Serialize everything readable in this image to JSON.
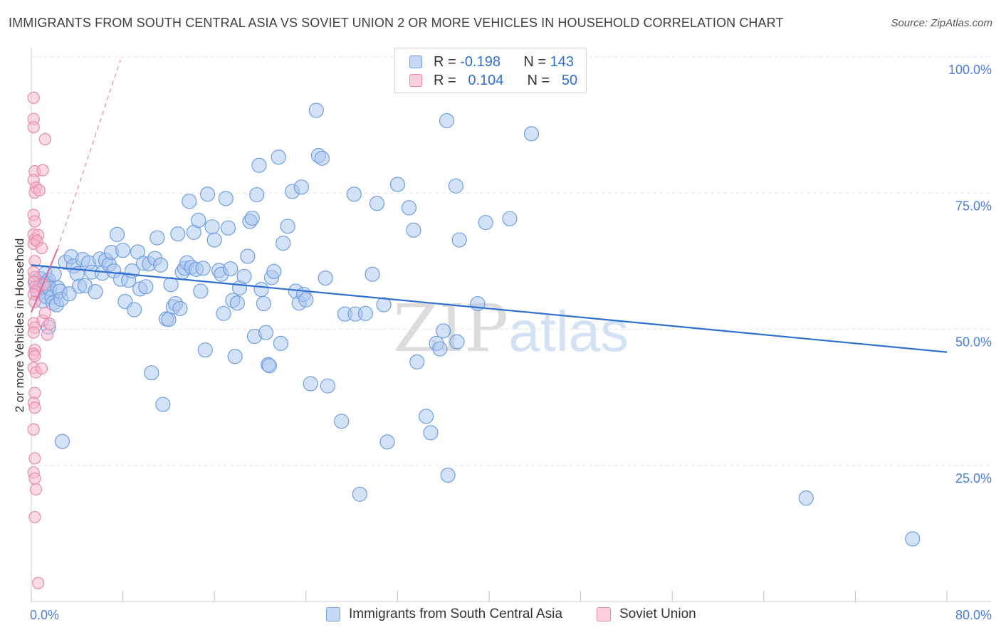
{
  "header": {
    "title": "IMMIGRANTS FROM SOUTH CENTRAL ASIA VS SOVIET UNION 2 OR MORE VEHICLES IN HOUSEHOLD CORRELATION CHART",
    "source": "Source: ZipAtlas.com"
  },
  "legend": {
    "blue": {
      "r_label": "R =",
      "r_value": "-0.198",
      "n_label": "N =",
      "n_value": "143"
    },
    "pink": {
      "r_label": "R =",
      "r_value": "0.104",
      "n_label": "N =",
      "n_value": "50"
    }
  },
  "bottom_legend": {
    "blue_label": "Immigrants from South Central Asia",
    "pink_label": "Soviet Union"
  },
  "watermark": {
    "zip": "ZIP",
    "atlas": "atlas"
  },
  "colors": {
    "blue_fill": "#a9c6ef",
    "blue_stroke": "#6f9ee0",
    "blue_line": "#2f6fd0",
    "pink_fill": "#f6b6cb",
    "pink_stroke": "#e78aab",
    "pink_line": "#e0689a",
    "grid": "#e4e4e4",
    "tick_label": "#4a7fd6"
  },
  "chart_data": {
    "type": "scatter",
    "title": "IMMIGRANTS FROM SOUTH CENTRAL ASIA VS SOVIET UNION 2 OR MORE VEHICLES IN HOUSEHOLD CORRELATION CHART",
    "xlabel": "",
    "ylabel": "2 or more Vehicles in Household",
    "xlim": [
      0,
      80
    ],
    "ylim": [
      0,
      100
    ],
    "x_tick_labels": [
      "0.0%",
      "80.0%"
    ],
    "y_ticks": [
      25,
      50,
      75,
      100
    ],
    "y_tick_labels": [
      "25.0%",
      "50.0%",
      "75.0%",
      "100.0%"
    ],
    "grid": true,
    "legend_position": "top-center",
    "series": [
      {
        "name": "Immigrants from South Central Asia",
        "color": "#a9c6ef",
        "points": [
          [
            0.4,
            58.8
          ],
          [
            0.5,
            57.2
          ],
          [
            0.6,
            56.5
          ],
          [
            0.8,
            59.3
          ],
          [
            0.9,
            58.1
          ],
          [
            1.0,
            55.2
          ],
          [
            1.1,
            57.8
          ],
          [
            1.2,
            60.2
          ],
          [
            1.3,
            56.0
          ],
          [
            1.4,
            58.5
          ],
          [
            1.5,
            59.0
          ],
          [
            1.5,
            50.4
          ],
          [
            1.6,
            57.5
          ],
          [
            1.8,
            55.9
          ],
          [
            1.9,
            54.8
          ],
          [
            2.0,
            60.1
          ],
          [
            2.2,
            54.5
          ],
          [
            2.3,
            57.6
          ],
          [
            2.5,
            57.0
          ],
          [
            2.6,
            55.5
          ],
          [
            2.7,
            29.4
          ],
          [
            3.0,
            62.3
          ],
          [
            3.3,
            56.5
          ],
          [
            3.5,
            63.3
          ],
          [
            3.7,
            61.6
          ],
          [
            4.0,
            60.2
          ],
          [
            4.2,
            57.9
          ],
          [
            4.5,
            62.8
          ],
          [
            4.7,
            58.0
          ],
          [
            5.0,
            62.2
          ],
          [
            5.3,
            60.5
          ],
          [
            5.6,
            56.9
          ],
          [
            6.0,
            62.9
          ],
          [
            6.2,
            60.3
          ],
          [
            6.5,
            62.7
          ],
          [
            6.8,
            61.9
          ],
          [
            7.0,
            64.1
          ],
          [
            7.2,
            60.7
          ],
          [
            7.5,
            67.4
          ],
          [
            7.8,
            59.2
          ],
          [
            8.0,
            64.5
          ],
          [
            8.2,
            55.1
          ],
          [
            8.5,
            59.0
          ],
          [
            8.8,
            60.7
          ],
          [
            9.0,
            53.6
          ],
          [
            9.3,
            64.2
          ],
          [
            9.5,
            57.4
          ],
          [
            9.8,
            62.1
          ],
          [
            10.0,
            57.8
          ],
          [
            10.3,
            62.0
          ],
          [
            10.5,
            42.0
          ],
          [
            10.8,
            63.0
          ],
          [
            11.0,
            66.8
          ],
          [
            11.3,
            61.8
          ],
          [
            11.5,
            36.2
          ],
          [
            11.8,
            51.9
          ],
          [
            12.0,
            51.8
          ],
          [
            12.2,
            58.2
          ],
          [
            12.4,
            54.1
          ],
          [
            12.6,
            54.7
          ],
          [
            12.8,
            67.5
          ],
          [
            13.0,
            53.8
          ],
          [
            13.2,
            60.5
          ],
          [
            13.4,
            61.2
          ],
          [
            13.6,
            62.2
          ],
          [
            13.8,
            73.5
          ],
          [
            14.0,
            61.4
          ],
          [
            14.2,
            67.8
          ],
          [
            14.4,
            61.0
          ],
          [
            14.6,
            70.0
          ],
          [
            14.8,
            57.0
          ],
          [
            15.0,
            61.2
          ],
          [
            15.2,
            46.2
          ],
          [
            15.4,
            74.8
          ],
          [
            15.8,
            68.8
          ],
          [
            16.0,
            66.4
          ],
          [
            16.4,
            60.8
          ],
          [
            16.6,
            60.1
          ],
          [
            16.8,
            52.9
          ],
          [
            17.0,
            74.0
          ],
          [
            17.2,
            68.6
          ],
          [
            17.4,
            61.1
          ],
          [
            17.6,
            55.3
          ],
          [
            17.8,
            45.0
          ],
          [
            18.0,
            54.8
          ],
          [
            18.2,
            57.6
          ],
          [
            18.6,
            59.7
          ],
          [
            18.9,
            63.4
          ],
          [
            19.1,
            69.8
          ],
          [
            19.3,
            70.4
          ],
          [
            19.5,
            48.7
          ],
          [
            19.7,
            74.7
          ],
          [
            19.9,
            80.1
          ],
          [
            20.1,
            57.3
          ],
          [
            20.3,
            54.7
          ],
          [
            20.5,
            49.4
          ],
          [
            20.7,
            43.5
          ],
          [
            20.8,
            43.3
          ],
          [
            21.0,
            59.5
          ],
          [
            21.2,
            60.6
          ],
          [
            21.6,
            81.6
          ],
          [
            21.8,
            47.4
          ],
          [
            22.0,
            65.8
          ],
          [
            22.4,
            68.9
          ],
          [
            22.8,
            75.3
          ],
          [
            23.1,
            57.0
          ],
          [
            23.4,
            54.8
          ],
          [
            23.6,
            76.1
          ],
          [
            23.8,
            56.4
          ],
          [
            24.0,
            55.4
          ],
          [
            24.4,
            40.0
          ],
          [
            24.9,
            90.2
          ],
          [
            25.1,
            81.9
          ],
          [
            25.4,
            81.4
          ],
          [
            25.7,
            59.4
          ],
          [
            25.9,
            39.6
          ],
          [
            27.1,
            33.1
          ],
          [
            27.4,
            52.8
          ],
          [
            28.2,
            74.8
          ],
          [
            28.3,
            52.8
          ],
          [
            28.7,
            19.7
          ],
          [
            29.2,
            52.9
          ],
          [
            29.8,
            60.1
          ],
          [
            30.2,
            73.1
          ],
          [
            30.8,
            54.5
          ],
          [
            31.1,
            29.3
          ],
          [
            32.0,
            76.6
          ],
          [
            33.0,
            72.3
          ],
          [
            33.4,
            68.2
          ],
          [
            33.7,
            44.0
          ],
          [
            34.5,
            34.0
          ],
          [
            34.9,
            31.0
          ],
          [
            35.4,
            47.4
          ],
          [
            35.7,
            46.4
          ],
          [
            36.0,
            49.7
          ],
          [
            36.3,
            88.3
          ],
          [
            36.4,
            23.2
          ],
          [
            37.1,
            76.3
          ],
          [
            37.2,
            47.7
          ],
          [
            37.4,
            66.4
          ],
          [
            39.0,
            54.7
          ],
          [
            39.7,
            69.6
          ],
          [
            41.8,
            70.3
          ],
          [
            43.7,
            85.9
          ],
          [
            67.7,
            19.0
          ],
          [
            77.0,
            11.5
          ]
        ]
      },
      {
        "name": "Soviet Union",
        "color": "#f6b6cb",
        "points": [
          [
            0.2,
            92.5
          ],
          [
            0.2,
            88.6
          ],
          [
            0.2,
            87.1
          ],
          [
            0.3,
            79.0
          ],
          [
            0.2,
            77.4
          ],
          [
            0.4,
            76.0
          ],
          [
            0.3,
            75.1
          ],
          [
            0.2,
            71.0
          ],
          [
            0.3,
            69.8
          ],
          [
            0.2,
            67.4
          ],
          [
            0.3,
            66.5
          ],
          [
            0.2,
            65.7
          ],
          [
            0.3,
            62.5
          ],
          [
            0.2,
            60.5
          ],
          [
            0.3,
            59.6
          ],
          [
            0.2,
            58.7
          ],
          [
            0.3,
            57.8
          ],
          [
            0.4,
            57.0
          ],
          [
            0.2,
            56.4
          ],
          [
            0.3,
            55.0
          ],
          [
            0.2,
            51.1
          ],
          [
            0.3,
            50.3
          ],
          [
            0.2,
            49.4
          ],
          [
            0.3,
            46.2
          ],
          [
            0.2,
            45.5
          ],
          [
            0.3,
            45.1
          ],
          [
            0.2,
            42.9
          ],
          [
            0.4,
            42.1
          ],
          [
            0.3,
            38.3
          ],
          [
            0.2,
            36.5
          ],
          [
            0.3,
            35.6
          ],
          [
            0.2,
            31.6
          ],
          [
            0.3,
            26.3
          ],
          [
            0.2,
            23.7
          ],
          [
            0.3,
            22.6
          ],
          [
            0.4,
            20.6
          ],
          [
            0.3,
            15.5
          ],
          [
            0.6,
            3.4
          ],
          [
            0.9,
            42.8
          ],
          [
            1.0,
            51.6
          ],
          [
            1.2,
            84.9
          ],
          [
            1.0,
            79.2
          ],
          [
            0.7,
            75.5
          ],
          [
            0.6,
            67.3
          ],
          [
            0.5,
            66.2
          ],
          [
            0.9,
            64.9
          ],
          [
            1.1,
            58.2
          ],
          [
            1.2,
            53.0
          ],
          [
            1.4,
            49.0
          ],
          [
            1.6,
            51.0
          ]
        ]
      }
    ],
    "trendlines": [
      {
        "series": "Immigrants from South Central Asia",
        "from": [
          0,
          61.8
        ],
        "to": [
          80,
          45.8
        ],
        "style": "solid"
      },
      {
        "series": "Soviet Union",
        "from": [
          0,
          53.1
        ],
        "to": [
          2.3,
          64.8
        ],
        "style": "solid"
      },
      {
        "series": "Soviet Union",
        "from": [
          2.3,
          64.8
        ],
        "to": [
          7.8,
          99.5
        ],
        "style": "dashed"
      }
    ]
  }
}
